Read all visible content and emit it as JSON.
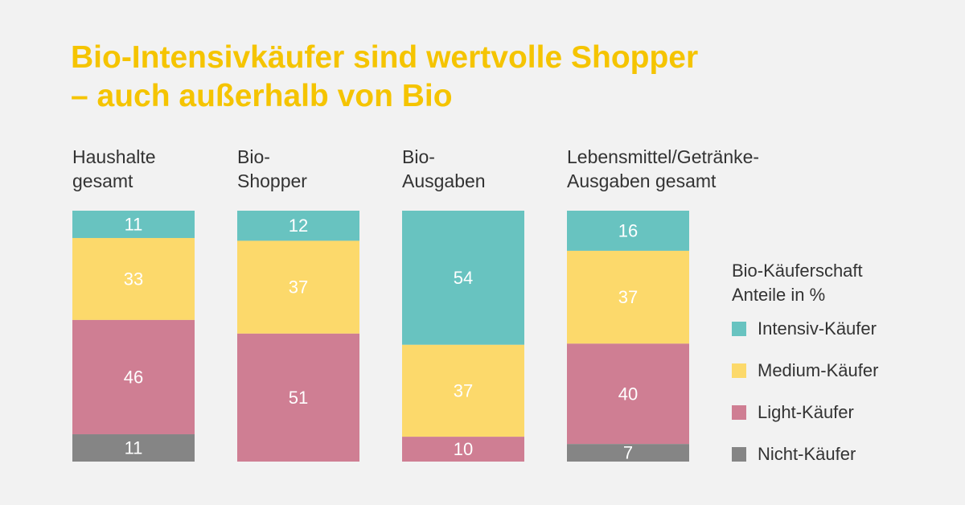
{
  "title": {
    "line1": "Bio-Intensivkäufer sind wertvolle Shopper",
    "line2": "– auch außerhalb von Bio"
  },
  "colors": {
    "background": "#f2f2f2",
    "title": "#f5c400",
    "intensiv": "#68c3c0",
    "medium": "#fcd96b",
    "light": "#cf7e93",
    "nicht": "#858585"
  },
  "chart_data": {
    "type": "bar",
    "stacked": true,
    "orientation": "vertical",
    "categories": [
      {
        "line1": "Haushalte",
        "line2": "gesamt"
      },
      {
        "line1": "Bio-",
        "line2": "Shopper"
      },
      {
        "line1": "Bio-",
        "line2": "Ausgaben"
      },
      {
        "line1": "Lebensmittel/Getränke-",
        "line2": "Ausgaben gesamt"
      }
    ],
    "series": [
      {
        "name": "Intensiv-Käufer",
        "key": "intensiv",
        "values": [
          11,
          12,
          54,
          16
        ]
      },
      {
        "name": "Medium-Käufer",
        "key": "medium",
        "values": [
          33,
          37,
          37,
          37
        ]
      },
      {
        "name": "Light-Käufer",
        "key": "light",
        "values": [
          46,
          51,
          10,
          40
        ]
      },
      {
        "name": "Nicht-Käufer",
        "key": "nicht",
        "values": [
          11,
          0,
          0,
          7
        ]
      }
    ],
    "legend_title": {
      "line1": "Bio-Käuferschaft",
      "line2": "Anteile in %"
    },
    "legend_position": "right",
    "grid": false,
    "ylim": [
      0,
      100
    ]
  }
}
